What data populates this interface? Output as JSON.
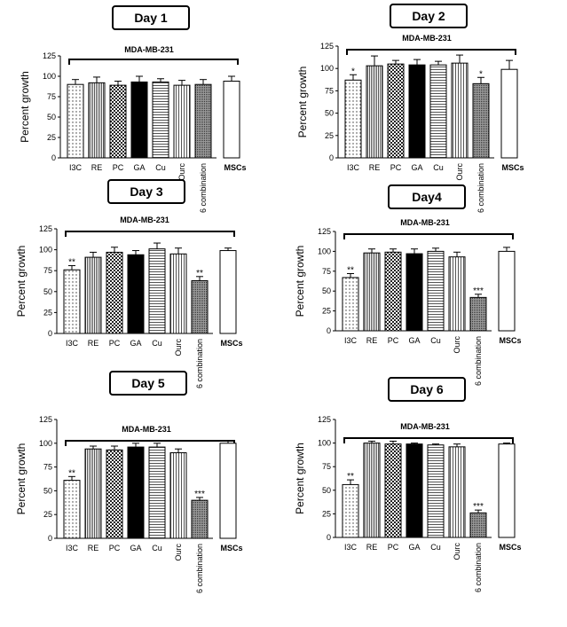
{
  "patterns": [
    "dots",
    "vlines",
    "checker",
    "solid",
    "hlines",
    "vlines2",
    "dense",
    "white"
  ],
  "chart_data": [
    {
      "type": "bar",
      "title": "Day 1",
      "subtitle": "MDA-MB-231",
      "ylabel": "Percent growth",
      "ylim": [
        0,
        125
      ],
      "yticks": [
        "0",
        "25",
        "50",
        "75",
        "100",
        "125"
      ],
      "categories": [
        "I3C",
        "RE",
        "PC",
        "GA",
        "Cu",
        "Ourc",
        "6 combination",
        "MSCs"
      ],
      "values": [
        90,
        92,
        89,
        93,
        93,
        89,
        90,
        94
      ],
      "errors": [
        6,
        7,
        5,
        7,
        4,
        6,
        6,
        6
      ],
      "significance": [
        "",
        "",
        "",
        "",
        "",
        "",
        "",
        ""
      ]
    },
    {
      "type": "bar",
      "title": "Day 2",
      "subtitle": "MDA-MB-231",
      "ylabel": "Percent growth",
      "ylim": [
        0,
        125
      ],
      "yticks": [
        "0",
        "25",
        "50",
        "75",
        "100",
        "125"
      ],
      "categories": [
        "I3C",
        "RE",
        "PC",
        "GA",
        "Cu",
        "Ourc",
        "6 combination",
        "MSCs"
      ],
      "values": [
        87,
        103,
        105,
        104,
        104,
        106,
        83,
        99
      ],
      "errors": [
        6,
        11,
        4,
        6,
        4,
        9,
        7,
        10
      ],
      "significance": [
        "*",
        "",
        "",
        "",
        "",
        "",
        "*",
        ""
      ]
    },
    {
      "type": "bar",
      "title": "Day 3",
      "subtitle": "MDA-MB-231",
      "ylabel": "Percent growth",
      "ylim": [
        0,
        125
      ],
      "yticks": [
        "0",
        "25",
        "50",
        "75",
        "100",
        "125"
      ],
      "categories": [
        "I3C",
        "RE",
        "PC",
        "GA",
        "Cu",
        "Ourc",
        "6 combination",
        "MSCs"
      ],
      "values": [
        76,
        91,
        97,
        94,
        101,
        95,
        63,
        99
      ],
      "errors": [
        5,
        6,
        6,
        5,
        7,
        7,
        5,
        3
      ],
      "significance": [
        "**",
        "",
        "",
        "",
        "",
        "",
        "**",
        ""
      ]
    },
    {
      "type": "bar",
      "title": "Day4",
      "subtitle": "MDA-MB-231",
      "ylabel": "Percent growth",
      "ylim": [
        0,
        125
      ],
      "yticks": [
        "0",
        "25",
        "50",
        "75",
        "100",
        "125"
      ],
      "categories": [
        "I3C",
        "RE",
        "PC",
        "GA",
        "Cu",
        "Ourc",
        "6 combination",
        "MSCs"
      ],
      "values": [
        67,
        98,
        99,
        97,
        100,
        93,
        42,
        100
      ],
      "errors": [
        5,
        5,
        4,
        6,
        4,
        6,
        4,
        5
      ],
      "significance": [
        "**",
        "",
        "",
        "",
        "",
        "",
        "***",
        ""
      ]
    },
    {
      "type": "bar",
      "title": "Day 5",
      "subtitle": "MDA-MB-231",
      "ylabel": "Percent growth",
      "ylim": [
        0,
        125
      ],
      "yticks": [
        "0",
        "25",
        "50",
        "75",
        "100",
        "125"
      ],
      "categories": [
        "I3C",
        "RE",
        "PC",
        "GA",
        "Cu",
        "Ourc",
        "6 combination",
        "MSCs"
      ],
      "values": [
        61,
        94,
        93,
        96,
        96,
        90,
        40,
        100
      ],
      "errors": [
        4,
        3,
        4,
        4,
        4,
        4,
        3,
        3
      ],
      "significance": [
        "**",
        "",
        "",
        "",
        "",
        "",
        "***",
        ""
      ]
    },
    {
      "type": "bar",
      "title": "Day 6",
      "subtitle": "MDA-MB-231",
      "ylabel": "Percent growth",
      "ylim": [
        0,
        125
      ],
      "yticks": [
        "0",
        "25",
        "50",
        "75",
        "100",
        "125"
      ],
      "categories": [
        "I3C",
        "RE",
        "PC",
        "GA",
        "Cu",
        "Ourc",
        "6 combination",
        "MSCs"
      ],
      "values": [
        56,
        100,
        99,
        99,
        98,
        96,
        26,
        99
      ],
      "errors": [
        5,
        2,
        3,
        1,
        1,
        3,
        3,
        1
      ],
      "significance": [
        "**",
        "",
        "",
        "",
        "",
        "",
        "***",
        ""
      ]
    }
  ]
}
